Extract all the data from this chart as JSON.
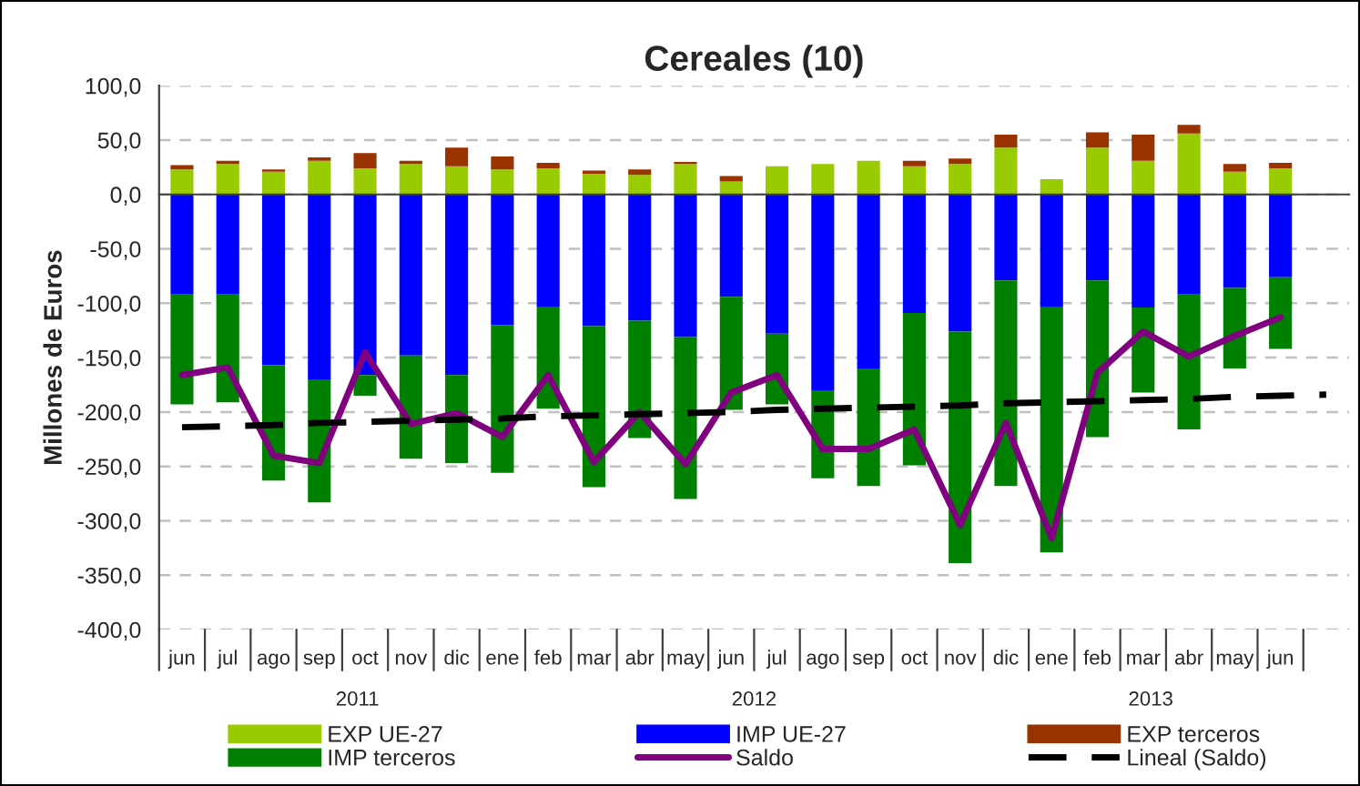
{
  "chart_data": {
    "type": "bar",
    "title": "Cereales (10)",
    "ylabel": "Millones de Euros",
    "categories": [
      "jun",
      "jul",
      "ago",
      "sep",
      "oct",
      "nov",
      "dic",
      "ene",
      "feb",
      "mar",
      "abr",
      "may",
      "jun",
      "jul",
      "ago",
      "sep",
      "oct",
      "nov",
      "dic",
      "ene",
      "feb",
      "mar",
      "abr",
      "may",
      "jun",
      null
    ],
    "stacked": true,
    "series": [
      {
        "name": "EXP UE-27",
        "color": "#99cc00",
        "values": [
          23,
          28,
          21,
          31,
          24,
          28,
          26,
          23,
          24,
          19,
          18,
          28,
          12,
          26,
          28,
          31,
          26,
          28,
          43,
          14,
          43,
          31,
          56,
          21,
          24,
          null
        ]
      },
      {
        "name": "IMP UE-27",
        "color": "#0000ff",
        "values": [
          -92,
          -92,
          -157,
          -170,
          -166,
          -148,
          -166,
          -120,
          -103,
          -121,
          -116,
          -131,
          -94,
          -128,
          -180,
          -160,
          -109,
          -126,
          -79,
          -103,
          -79,
          -104,
          -92,
          -86,
          -76,
          null
        ]
      },
      {
        "name": "EXP terceros",
        "color": "#993300",
        "values": [
          4,
          3,
          2,
          3,
          14,
          3,
          17,
          12,
          5,
          3,
          5,
          2,
          5,
          0,
          0,
          0,
          5,
          5,
          12,
          0,
          14,
          24,
          8,
          7,
          5,
          null
        ]
      },
      {
        "name": "IMP terceros",
        "color": "#008000",
        "values": [
          -101,
          -99,
          -106,
          -113,
          -19,
          -95,
          -81,
          -136,
          -94,
          -148,
          -108,
          -149,
          -104,
          -65,
          -81,
          -108,
          -140,
          -213,
          -189,
          -226,
          -144,
          -78,
          -124,
          -74,
          -66,
          null
        ]
      },
      {
        "name": "Saldo",
        "type": "line",
        "color": "#800080",
        "line_style": "solid",
        "values": [
          -166,
          -159,
          -240,
          -247,
          -145,
          -211,
          -201,
          -223,
          -166,
          -246,
          -200,
          -248,
          -182,
          -166,
          -234,
          -234,
          -216,
          -304,
          -210,
          -316,
          -164,
          -126,
          -149,
          -130,
          -113,
          null
        ]
      },
      {
        "name": "Lineal (Saldo)",
        "type": "line",
        "color": "#000000",
        "line_style": "dashed",
        "values": [
          -214,
          -213,
          -212,
          -210,
          -209,
          -208,
          -207,
          -206,
          -204,
          -203,
          -202,
          -201,
          -200,
          -198,
          -197,
          -196,
          -195,
          -194,
          -192,
          -191,
          -190,
          -189,
          -188,
          -186,
          -185,
          -184
        ]
      }
    ],
    "ylim": [
      -400,
      100
    ],
    "yticks": [
      {
        "value": -400,
        "label": "-400,0"
      },
      {
        "value": -350,
        "label": "-350,0"
      },
      {
        "value": -300,
        "label": "-300,0"
      },
      {
        "value": -250,
        "label": "-250,0"
      },
      {
        "value": -200,
        "label": "-200,0"
      },
      {
        "value": -150,
        "label": "-150,0"
      },
      {
        "value": -100,
        "label": "-100,0"
      },
      {
        "value": -50,
        "label": "-50,0"
      },
      {
        "value": 0,
        "label": "0,0"
      },
      {
        "value": 50,
        "label": "50,0"
      },
      {
        "value": 100,
        "label": "100,0"
      }
    ],
    "grid": "y",
    "legend": "bottom",
    "annotations": [
      "2011",
      "2012",
      "2013"
    ]
  }
}
